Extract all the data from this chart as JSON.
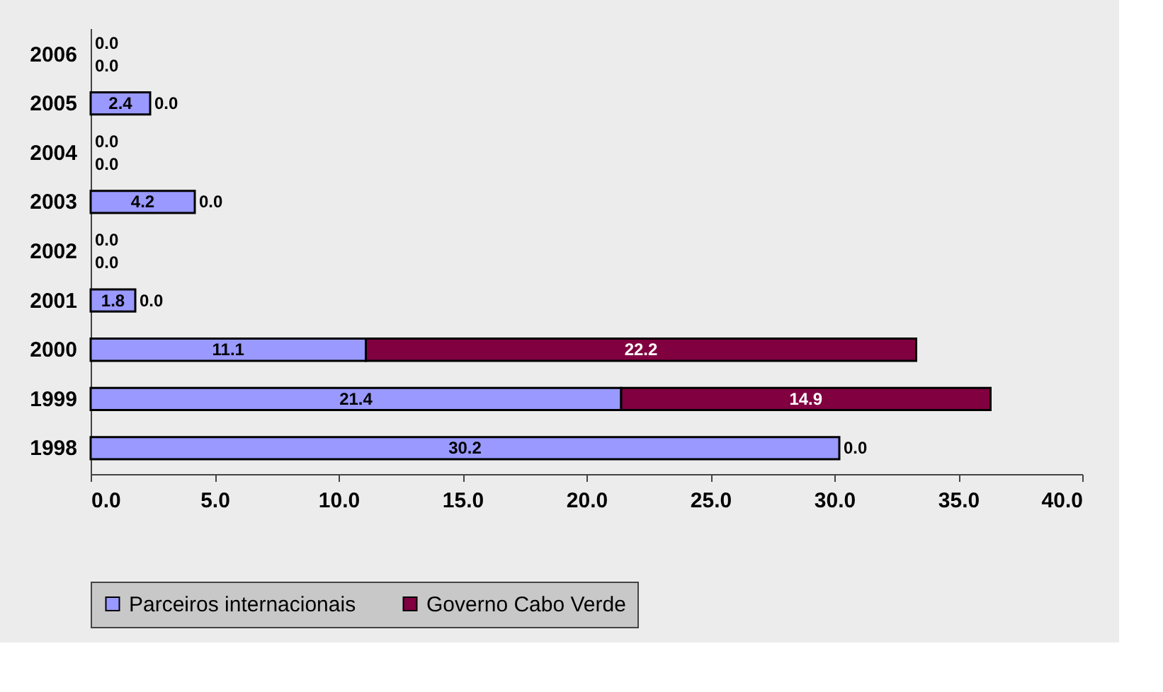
{
  "chart_data": {
    "type": "bar",
    "orientation": "horizontal",
    "stacked": true,
    "categories": [
      "2006",
      "2005",
      "2004",
      "2003",
      "2002",
      "2001",
      "2000",
      "1999",
      "1998"
    ],
    "series": [
      {
        "name": "Parceiros internacionais",
        "color": "#9999ff",
        "values": [
          0.0,
          2.4,
          0.0,
          4.2,
          0.0,
          1.8,
          11.1,
          21.4,
          30.2
        ],
        "value_labels": [
          "0.0",
          "2.4",
          "0.0",
          "4.2",
          "0.0",
          "1.8",
          "11.1",
          "21.4",
          "30.2"
        ]
      },
      {
        "name": "Governo Cabo Verde",
        "color": "#800040",
        "values": [
          0.0,
          0.0,
          0.0,
          0.0,
          0.0,
          0.0,
          22.2,
          14.9,
          0.0
        ],
        "value_labels": [
          "0.0",
          "0.0",
          "0.0",
          "0.0",
          "0.0",
          "0.0",
          "22.2",
          "14.9",
          "0.0"
        ]
      }
    ],
    "xlim": [
      0,
      40
    ],
    "xticks": [
      {
        "value": 0,
        "label": "0.0"
      },
      {
        "value": 5,
        "label": "5.0"
      },
      {
        "value": 10,
        "label": "10.0"
      },
      {
        "value": 15,
        "label": "15.0"
      },
      {
        "value": 20,
        "label": "20.0"
      },
      {
        "value": 25,
        "label": "25.0"
      },
      {
        "value": 30,
        "label": "30.0"
      },
      {
        "value": 35,
        "label": "35.0"
      },
      {
        "value": 40,
        "label": "40.0"
      }
    ],
    "grid": false,
    "legend": "bottom"
  }
}
